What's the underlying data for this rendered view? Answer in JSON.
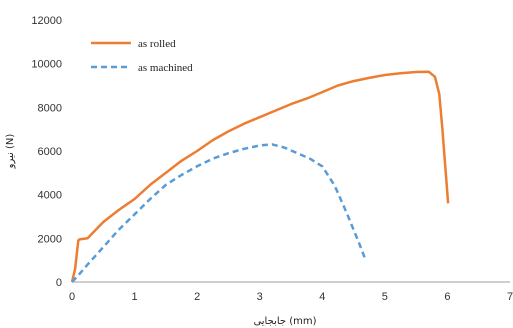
{
  "chart_data": {
    "type": "line",
    "xlabel": "جابجایی (mm)",
    "ylabel": "نیرو (N)",
    "xlim": [
      0,
      7
    ],
    "ylim": [
      0,
      12000
    ],
    "x_ticks": [
      "0",
      "1",
      "2",
      "3",
      "4",
      "5",
      "6",
      "7"
    ],
    "y_ticks": [
      "0",
      "2000",
      "4000",
      "6000",
      "8000",
      "10000",
      "12000"
    ],
    "grid": false,
    "legend_position": "top-left",
    "series": [
      {
        "name": "as rolled",
        "color": "#ED7D31",
        "style": "solid",
        "x": [
          0,
          0.05,
          0.1,
          0.12,
          0.25,
          0.5,
          0.75,
          1.0,
          1.25,
          1.5,
          1.75,
          2.0,
          2.25,
          2.5,
          2.75,
          3.0,
          3.25,
          3.5,
          3.75,
          4.0,
          4.25,
          4.5,
          4.75,
          5.0,
          5.25,
          5.5,
          5.7,
          5.8,
          5.87,
          5.92,
          5.96,
          5.99,
          6.01
        ],
        "y": [
          0,
          600,
          1900,
          1950,
          2000,
          2750,
          3300,
          3800,
          4450,
          5000,
          5550,
          6000,
          6500,
          6900,
          7250,
          7550,
          7850,
          8150,
          8400,
          8700,
          9000,
          9200,
          9350,
          9480,
          9560,
          9620,
          9630,
          9400,
          8600,
          7000,
          5500,
          4400,
          3600
        ]
      },
      {
        "name": "as machined",
        "color": "#5B9BD5",
        "style": "dashed",
        "x": [
          0,
          0.1,
          0.25,
          0.5,
          0.75,
          1.0,
          1.25,
          1.5,
          1.75,
          2.0,
          2.25,
          2.5,
          2.75,
          3.0,
          3.2,
          3.4,
          3.6,
          3.8,
          4.0,
          4.2,
          4.4,
          4.6,
          4.68
        ],
        "y": [
          0,
          300,
          800,
          1600,
          2400,
          3100,
          3800,
          4450,
          4900,
          5300,
          5650,
          5900,
          6100,
          6250,
          6300,
          6150,
          5900,
          5650,
          5300,
          4400,
          3100,
          1700,
          1100
        ]
      }
    ]
  }
}
